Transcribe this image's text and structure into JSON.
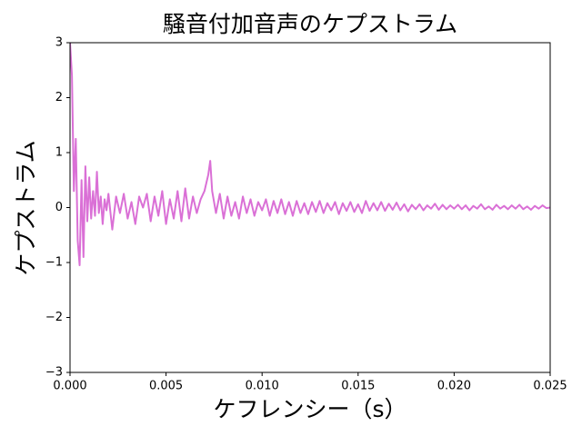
{
  "chart_data": {
    "type": "line",
    "title": "騒音付加音声のケプストラム",
    "x_label": "ケフレンシー（s）",
    "y_label": "ケプストラム",
    "x": [
      0.0,
      0.0001,
      0.0002,
      0.0003,
      0.0004,
      0.0005,
      0.0006,
      0.0007,
      0.0008,
      0.0009,
      0.001,
      0.0011,
      0.0012,
      0.0013,
      0.0014,
      0.0015,
      0.0016,
      0.0017,
      0.0018,
      0.0019,
      0.002,
      0.0022,
      0.0024,
      0.0026,
      0.0028,
      0.003,
      0.0032,
      0.0034,
      0.0036,
      0.0038,
      0.004,
      0.0042,
      0.0044,
      0.0046,
      0.0048,
      0.005,
      0.0052,
      0.0054,
      0.0056,
      0.0058,
      0.006,
      0.0062,
      0.0064,
      0.0066,
      0.0068,
      0.007,
      0.0072,
      0.0073,
      0.0074,
      0.0076,
      0.0078,
      0.008,
      0.0082,
      0.0084,
      0.0086,
      0.0088,
      0.009,
      0.0092,
      0.0094,
      0.0096,
      0.0098,
      0.01,
      0.0102,
      0.0104,
      0.0106,
      0.0108,
      0.011,
      0.0112,
      0.0114,
      0.0116,
      0.0118,
      0.012,
      0.0122,
      0.0124,
      0.0126,
      0.0128,
      0.013,
      0.0132,
      0.0134,
      0.0136,
      0.0138,
      0.014,
      0.0142,
      0.0144,
      0.0146,
      0.0148,
      0.015,
      0.0152,
      0.0154,
      0.0156,
      0.0158,
      0.016,
      0.0162,
      0.0164,
      0.0166,
      0.0168,
      0.017,
      0.0172,
      0.0174,
      0.0176,
      0.0178,
      0.018,
      0.0182,
      0.0184,
      0.0186,
      0.0188,
      0.019,
      0.0192,
      0.0194,
      0.0196,
      0.0198,
      0.02,
      0.0202,
      0.0204,
      0.0206,
      0.0208,
      0.021,
      0.0212,
      0.0214,
      0.0216,
      0.0218,
      0.022,
      0.0222,
      0.0224,
      0.0226,
      0.0228,
      0.023,
      0.0232,
      0.0234,
      0.0236,
      0.0238,
      0.024,
      0.0242,
      0.0244,
      0.0246,
      0.0248,
      0.025
    ],
    "series": [
      {
        "color": "#da70d6",
        "values": [
          3.0,
          2.4,
          0.3,
          1.25,
          -0.6,
          -1.05,
          0.5,
          -0.9,
          0.75,
          -0.25,
          0.55,
          -0.2,
          0.3,
          -0.15,
          0.65,
          -0.1,
          0.2,
          -0.3,
          0.15,
          -0.05,
          0.25,
          -0.4,
          0.2,
          -0.1,
          0.25,
          -0.2,
          0.1,
          -0.3,
          0.2,
          0.0,
          0.25,
          -0.25,
          0.2,
          -0.15,
          0.3,
          -0.3,
          0.15,
          -0.2,
          0.3,
          -0.25,
          0.35,
          -0.2,
          0.2,
          -0.1,
          0.15,
          0.3,
          0.6,
          0.85,
          0.3,
          -0.1,
          0.25,
          -0.2,
          0.2,
          -0.15,
          0.1,
          -0.2,
          0.2,
          -0.1,
          0.15,
          -0.15,
          0.1,
          -0.05,
          0.15,
          -0.15,
          0.12,
          -0.1,
          0.15,
          -0.12,
          0.1,
          -0.15,
          0.12,
          -0.1,
          0.08,
          -0.12,
          0.1,
          -0.08,
          0.12,
          -0.1,
          0.08,
          -0.05,
          0.1,
          -0.12,
          0.08,
          -0.06,
          0.1,
          -0.08,
          0.06,
          -0.1,
          0.12,
          -0.06,
          0.08,
          -0.05,
          0.1,
          -0.06,
          0.07,
          -0.04,
          0.09,
          -0.05,
          0.06,
          -0.07,
          0.05,
          -0.03,
          0.06,
          -0.05,
          0.04,
          -0.02,
          0.07,
          -0.04,
          0.05,
          -0.03,
          0.04,
          -0.02,
          0.05,
          -0.03,
          0.04,
          -0.05,
          0.03,
          -0.02,
          0.06,
          -0.03,
          0.02,
          -0.04,
          0.05,
          -0.02,
          0.03,
          -0.03,
          0.04,
          -0.02,
          0.05,
          -0.03,
          0.02,
          -0.04,
          0.03,
          -0.02,
          0.04,
          -0.01,
          0.0
        ]
      }
    ],
    "xlim": [
      0.0,
      0.025
    ],
    "ylim": [
      -3,
      3
    ],
    "xticks": [
      {
        "value": 0.0,
        "label": "0.000"
      },
      {
        "value": 0.005,
        "label": "0.005"
      },
      {
        "value": 0.01,
        "label": "0.010"
      },
      {
        "value": 0.015,
        "label": "0.015"
      },
      {
        "value": 0.02,
        "label": "0.020"
      },
      {
        "value": 0.025,
        "label": "0.025"
      }
    ],
    "yticks": [
      {
        "value": -3,
        "label": "−3"
      },
      {
        "value": -2,
        "label": "−2"
      },
      {
        "value": -1,
        "label": "−1"
      },
      0,
      1,
      2,
      3
    ],
    "grid": false
  }
}
